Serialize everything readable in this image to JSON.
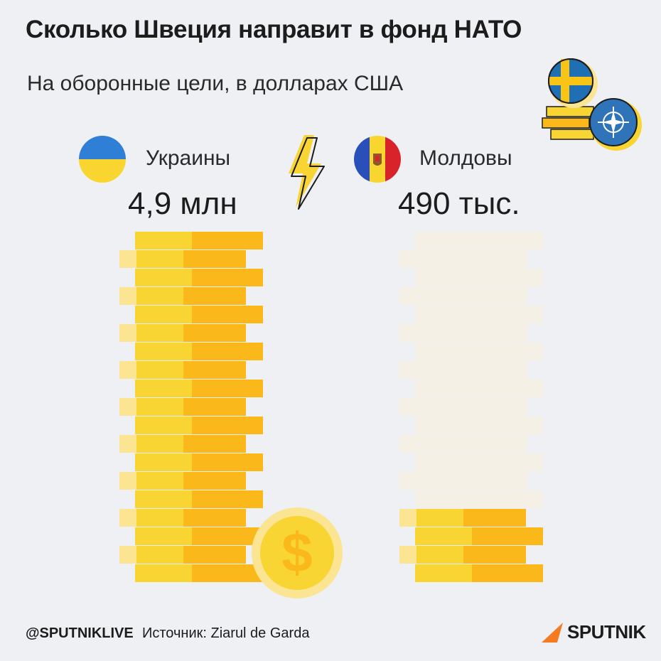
{
  "header": {
    "title": "Сколько Швеция направит в фонд НАТО",
    "subtitle": "На оборонные цели, в долларах США"
  },
  "comparison": {
    "left": {
      "country": "Украины",
      "amount_text": "4,9 млн",
      "flag_icon": "ukraine-flag-icon"
    },
    "right": {
      "country": "Молдовы",
      "amount_text": "490 тыс.",
      "flag_icon": "moldova-flag-icon"
    },
    "divider_icon": "lightning-icon"
  },
  "chart_data": {
    "type": "bar",
    "categories": [
      "Украины",
      "Молдовы"
    ],
    "values": [
      4900000,
      490000
    ],
    "value_labels": [
      "4,9 млн",
      "490 тыс."
    ],
    "unit": "USD"
  },
  "footer": {
    "handle": "@SPUTNIKLIVE",
    "source": "Источник: Ziarul de Garda",
    "brand": "SPUTNIK"
  },
  "colors": {
    "background": "#eef0f4",
    "coin_light": "#f8d533",
    "coin_dark": "#fbb81b",
    "coin_pale": "#fbe592",
    "coin_ghost": "#f5f0e6",
    "brand_orange": "#f47b20"
  }
}
